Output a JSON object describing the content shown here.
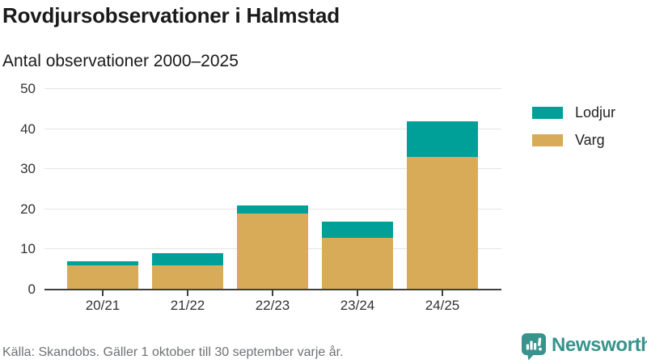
{
  "title": "Rovdjursobservationer i Halmstad",
  "subtitle": "Antal observationer 2000–2025",
  "chart_data": {
    "type": "bar",
    "stacked": true,
    "title": "Rovdjursobservationer i Halmstad",
    "subtitle": "Antal observationer 2000–2025",
    "categories": [
      "20/21",
      "21/22",
      "22/23",
      "23/24",
      "24/25"
    ],
    "series": [
      {
        "name": "Varg",
        "color": "#d8ab58",
        "values": [
          6,
          6,
          19,
          13,
          33
        ]
      },
      {
        "name": "Lodjur",
        "color": "#00a099",
        "values": [
          1,
          3,
          2,
          4,
          9
        ]
      }
    ],
    "totals": [
      7,
      9,
      21,
      17,
      42
    ],
    "xlabel": "",
    "ylabel": "",
    "ylim": [
      0,
      50
    ],
    "yticks": [
      0,
      10,
      20,
      30,
      40,
      50
    ],
    "grid": true,
    "legend_position": "right",
    "legend": [
      {
        "label": "Lodjur",
        "color": "#00a099"
      },
      {
        "label": "Varg",
        "color": "#d8ab58"
      }
    ]
  },
  "footer": {
    "source": "Källa: Skandobs. Gäller 1 oktober till 30 september varje år."
  },
  "branding": {
    "name": "Newsworthy",
    "logo_icon": "bar-chart-speech-bubble",
    "color": "#37938b"
  },
  "colors": {
    "lodjur": "#00a099",
    "varg": "#d8ab58",
    "axis": "#404040",
    "grid": "#e3e3e3",
    "text": "#1a1a1a",
    "tick_text": "#333333",
    "muted_text": "#6e7275"
  }
}
